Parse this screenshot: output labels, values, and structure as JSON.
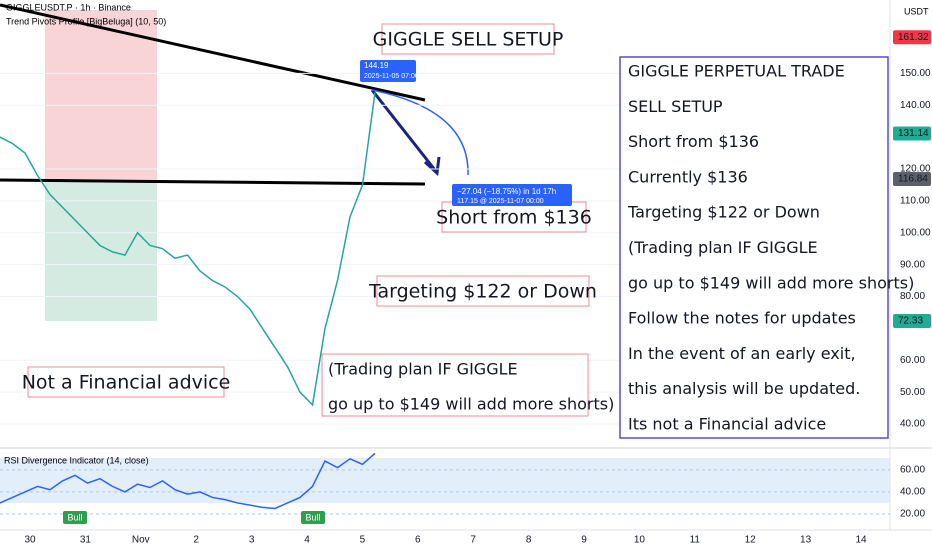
{
  "header": {
    "symbol": "GIGGLEUSDT.P · 1h · Binance",
    "indicator": "Trend Pivots Profile [BigBeluga] (10, 50)",
    "currency": "USDT"
  },
  "title": "GIGGLE SELL SETUP",
  "notes": {
    "short": "Short from $136",
    "target": "Targeting $122 or Down",
    "plan": [
      "(Trading plan IF GIGGLE",
      "go up to $149 will add more shorts)"
    ],
    "disclaimer": "Not a Financial advice"
  },
  "summary": [
    "GIGGLE PERPETUAL TRADE",
    "SELL SETUP",
    "Short from $136",
    "Currently $136",
    "Targeting $122 or Down",
    "(Trading plan IF GIGGLE",
    "go up to $149 will add more shorts)",
    "Follow the notes for updates",
    "In the event of an early exit,",
    "this analysis will be updated.",
    "Its not a Financial advice"
  ],
  "measure": {
    "price": "144.19",
    "time": "2025-11-05 07:00",
    "change": "−27.04 (−18.75%) in 1d 17h",
    "target": "117.15 @ 2025-11-07 00:00"
  },
  "price_axis": {
    "ylim": [
      35,
      173
    ],
    "ticks": [
      {
        "value": 150,
        "label": "150.00"
      },
      {
        "value": 140,
        "label": "140.00"
      },
      {
        "value": 120,
        "label": "120.00"
      },
      {
        "value": 110,
        "label": "110.00"
      },
      {
        "value": 100,
        "label": "100.00"
      },
      {
        "value": 90,
        "label": "90.00"
      },
      {
        "value": 80,
        "label": "80.00"
      },
      {
        "value": 60,
        "label": "60.00"
      },
      {
        "value": 50,
        "label": "50.00"
      },
      {
        "value": 40,
        "label": "40.00"
      }
    ],
    "badges": [
      {
        "value": 161.32,
        "color": "#f23645"
      },
      {
        "value": 131.14,
        "color": "#22ab94"
      },
      {
        "value": 116.84,
        "color": "#5d606b"
      },
      {
        "value": 72.33,
        "color": "#22ab94"
      }
    ]
  },
  "time_axis": {
    "labels": [
      "30",
      "31",
      "Nov",
      "2",
      "3",
      "4",
      "5",
      "6",
      "7",
      "8",
      "9",
      "10",
      "11",
      "12",
      "13",
      "14"
    ]
  },
  "price": {
    "color": "#26a69a",
    "values": [
      130,
      128,
      125,
      118,
      112,
      108,
      104,
      100,
      96,
      94,
      93,
      100,
      96,
      95,
      92,
      93,
      88,
      85,
      83,
      80,
      76,
      70,
      64,
      58,
      50,
      46,
      70,
      85,
      105,
      115,
      144
    ]
  },
  "rsi": {
    "title": "RSI Divergence Indicator (14, close)",
    "ylim": [
      10,
      78
    ],
    "ticks": [
      {
        "value": 60,
        "label": "60.00"
      },
      {
        "value": 40,
        "label": "40.00"
      },
      {
        "value": 20,
        "label": "20.00"
      }
    ],
    "color": "#2962ff",
    "values": [
      30,
      35,
      40,
      45,
      42,
      50,
      55,
      48,
      52,
      45,
      40,
      47,
      44,
      50,
      42,
      38,
      40,
      35,
      33,
      30,
      28,
      26,
      25,
      30,
      35,
      45,
      68,
      62,
      70,
      65,
      75
    ],
    "signals": [
      "Bull",
      "Bull"
    ]
  }
}
